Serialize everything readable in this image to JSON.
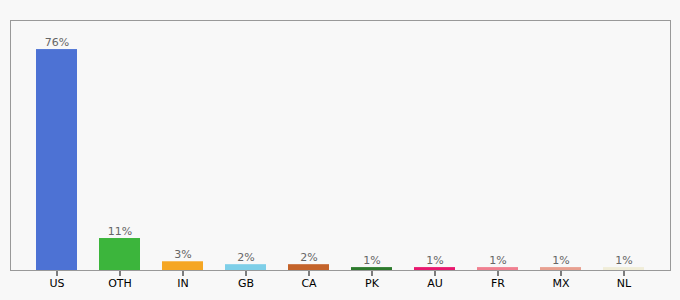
{
  "chart_data": {
    "type": "bar",
    "categories": [
      "US",
      "OTH",
      "IN",
      "GB",
      "CA",
      "PK",
      "AU",
      "FR",
      "MX",
      "NL"
    ],
    "values": [
      76,
      11,
      3,
      2,
      2,
      1,
      1,
      1,
      1,
      1
    ],
    "value_labels": [
      "76%",
      "11%",
      "3%",
      "2%",
      "2%",
      "1%",
      "1%",
      "1%",
      "1%",
      "1%"
    ],
    "colors": [
      "#4d72d4",
      "#3cb53c",
      "#f5a623",
      "#7ecfe8",
      "#c4632a",
      "#2d7a2d",
      "#e8186e",
      "#f08090",
      "#e8a090",
      "#f0edd8"
    ],
    "ylim": [
      0,
      86
    ],
    "data_labels": true,
    "tick_labels": "x",
    "grid": false
  }
}
